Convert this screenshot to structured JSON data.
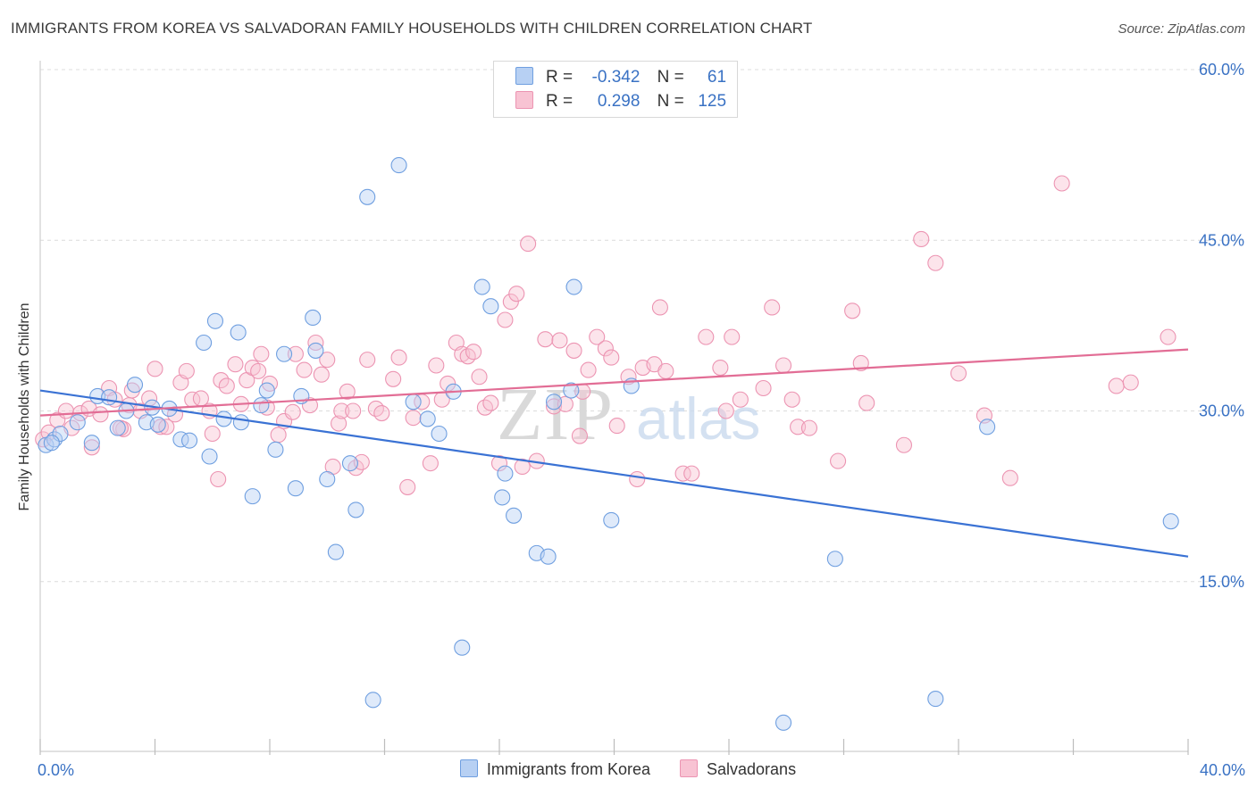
{
  "title": "IMMIGRANTS FROM KOREA VS SALVADORAN FAMILY HOUSEHOLDS WITH CHILDREN CORRELATION CHART",
  "source": "Source: ZipAtlas.com",
  "watermark": {
    "zip": "ZIP",
    "atlas": "atlas"
  },
  "legend_stats": [
    {
      "r_label": "R =",
      "r_value": "-0.342",
      "n_label": "N =",
      "n_value": "61",
      "fill": "#b7d0f3",
      "stroke": "#6f9fe0"
    },
    {
      "r_label": "R =",
      "r_value": "0.298",
      "n_label": "N =",
      "n_value": "125",
      "fill": "#f8c3d3",
      "stroke": "#ec94b2"
    }
  ],
  "legend_bottom": [
    {
      "label": "Immigrants from Korea",
      "fill": "#b7d0f3",
      "stroke": "#6f9fe0"
    },
    {
      "label": "Salvadorans",
      "fill": "#f8c3d3",
      "stroke": "#ec94b2"
    }
  ],
  "chart_data": {
    "type": "scatter",
    "xlabel": "",
    "ylabel": "Family Households with Children",
    "xlim": [
      0,
      40
    ],
    "ylim": [
      0,
      60
    ],
    "x_tick_labels": [
      "0.0%",
      "40.0%"
    ],
    "y_ticks": [
      15,
      30,
      45,
      60
    ],
    "y_tick_labels": [
      "15.0%",
      "30.0%",
      "45.0%",
      "60.0%"
    ],
    "grid": true,
    "legend_position": "top-center",
    "series": [
      {
        "name": "Immigrants from Korea",
        "color": "#6f9fe0",
        "line_color": "#3a72d4",
        "trend": {
          "x": [
            0,
            40
          ],
          "y": [
            31.8,
            17.2
          ]
        },
        "points": [
          [
            0.2,
            27.0
          ],
          [
            0.5,
            27.5
          ],
          [
            0.7,
            28.0
          ],
          [
            1.3,
            29.0
          ],
          [
            1.8,
            27.2
          ],
          [
            2.0,
            31.3
          ],
          [
            2.4,
            31.2
          ],
          [
            2.7,
            28.5
          ],
          [
            3.0,
            30.0
          ],
          [
            3.3,
            32.3
          ],
          [
            3.7,
            29.0
          ],
          [
            3.9,
            30.3
          ],
          [
            4.1,
            28.8
          ],
          [
            4.5,
            30.2
          ],
          [
            4.9,
            27.5
          ],
          [
            5.2,
            27.4
          ],
          [
            5.7,
            36.0
          ],
          [
            5.9,
            26.0
          ],
          [
            6.1,
            37.9
          ],
          [
            6.4,
            29.3
          ],
          [
            6.9,
            36.9
          ],
          [
            7.0,
            29.0
          ],
          [
            7.4,
            22.5
          ],
          [
            7.7,
            30.5
          ],
          [
            7.9,
            31.8
          ],
          [
            8.2,
            26.6
          ],
          [
            8.5,
            35.0
          ],
          [
            8.9,
            23.2
          ],
          [
            9.1,
            31.3
          ],
          [
            9.5,
            38.2
          ],
          [
            9.6,
            35.3
          ],
          [
            10.0,
            24.0
          ],
          [
            10.3,
            17.6
          ],
          [
            10.8,
            25.4
          ],
          [
            11.0,
            21.3
          ],
          [
            11.4,
            48.8
          ],
          [
            11.6,
            4.6
          ],
          [
            12.5,
            51.6
          ],
          [
            13.0,
            30.8
          ],
          [
            13.5,
            29.3
          ],
          [
            13.9,
            28.0
          ],
          [
            14.4,
            31.7
          ],
          [
            14.7,
            9.2
          ],
          [
            15.4,
            40.9
          ],
          [
            15.7,
            39.2
          ],
          [
            16.1,
            22.4
          ],
          [
            16.2,
            24.5
          ],
          [
            16.5,
            20.8
          ],
          [
            17.3,
            17.5
          ],
          [
            17.7,
            17.2
          ],
          [
            17.9,
            30.8
          ],
          [
            18.5,
            31.8
          ],
          [
            18.6,
            40.9
          ],
          [
            19.9,
            20.4
          ],
          [
            20.6,
            32.2
          ],
          [
            25.9,
            2.6
          ],
          [
            27.7,
            17.0
          ],
          [
            31.2,
            4.7
          ],
          [
            33.0,
            28.6
          ],
          [
            39.4,
            20.3
          ],
          [
            0.4,
            27.2
          ]
        ]
      },
      {
        "name": "Salvadorans",
        "color": "#ec94b2",
        "line_color": "#e26d95",
        "trend": {
          "x": [
            0,
            40
          ],
          "y": [
            29.6,
            35.4
          ]
        },
        "points": [
          [
            0.1,
            27.5
          ],
          [
            0.3,
            28.1
          ],
          [
            0.6,
            29.2
          ],
          [
            0.9,
            30.0
          ],
          [
            1.1,
            28.5
          ],
          [
            1.4,
            29.8
          ],
          [
            1.7,
            30.2
          ],
          [
            1.8,
            26.8
          ],
          [
            2.1,
            29.7
          ],
          [
            2.4,
            32.0
          ],
          [
            2.6,
            31.0
          ],
          [
            2.9,
            28.4
          ],
          [
            3.1,
            30.5
          ],
          [
            3.2,
            31.8
          ],
          [
            3.5,
            30.0
          ],
          [
            3.8,
            31.1
          ],
          [
            4.0,
            33.7
          ],
          [
            4.2,
            28.6
          ],
          [
            4.4,
            28.6
          ],
          [
            4.7,
            29.7
          ],
          [
            4.9,
            32.5
          ],
          [
            5.1,
            33.5
          ],
          [
            5.3,
            31.0
          ],
          [
            5.6,
            31.1
          ],
          [
            5.9,
            30.0
          ],
          [
            6.0,
            28.0
          ],
          [
            6.2,
            24.0
          ],
          [
            6.3,
            32.7
          ],
          [
            6.5,
            32.2
          ],
          [
            6.8,
            34.1
          ],
          [
            7.0,
            30.6
          ],
          [
            7.2,
            32.7
          ],
          [
            7.4,
            33.8
          ],
          [
            7.7,
            35.0
          ],
          [
            7.9,
            30.3
          ],
          [
            8.0,
            32.4
          ],
          [
            8.3,
            27.9
          ],
          [
            8.5,
            29.1
          ],
          [
            8.8,
            29.9
          ],
          [
            8.9,
            35.0
          ],
          [
            9.2,
            33.6
          ],
          [
            9.4,
            30.5
          ],
          [
            9.6,
            36.0
          ],
          [
            9.8,
            33.2
          ],
          [
            10.0,
            34.5
          ],
          [
            10.2,
            25.1
          ],
          [
            10.4,
            28.9
          ],
          [
            10.5,
            30.0
          ],
          [
            10.7,
            31.7
          ],
          [
            10.9,
            30.0
          ],
          [
            11.0,
            25.0
          ],
          [
            11.2,
            25.5
          ],
          [
            11.4,
            34.5
          ],
          [
            11.7,
            30.2
          ],
          [
            11.9,
            29.8
          ],
          [
            12.3,
            32.8
          ],
          [
            12.5,
            34.7
          ],
          [
            12.8,
            23.3
          ],
          [
            13.0,
            29.4
          ],
          [
            13.3,
            30.8
          ],
          [
            13.6,
            25.4
          ],
          [
            13.8,
            34.0
          ],
          [
            14.0,
            31.0
          ],
          [
            14.2,
            32.4
          ],
          [
            14.5,
            36.0
          ],
          [
            14.7,
            35.0
          ],
          [
            14.9,
            34.8
          ],
          [
            15.1,
            35.2
          ],
          [
            15.3,
            33.0
          ],
          [
            15.5,
            30.3
          ],
          [
            15.7,
            30.7
          ],
          [
            16.0,
            25.4
          ],
          [
            16.2,
            38.0
          ],
          [
            16.4,
            39.6
          ],
          [
            16.6,
            40.3
          ],
          [
            16.8,
            25.1
          ],
          [
            17.0,
            44.7
          ],
          [
            17.3,
            25.6
          ],
          [
            17.6,
            36.3
          ],
          [
            17.9,
            30.4
          ],
          [
            18.1,
            36.2
          ],
          [
            18.3,
            30.6
          ],
          [
            18.6,
            35.3
          ],
          [
            18.8,
            27.8
          ],
          [
            19.1,
            33.6
          ],
          [
            19.4,
            36.5
          ],
          [
            19.7,
            35.5
          ],
          [
            19.9,
            34.7
          ],
          [
            20.1,
            28.7
          ],
          [
            20.5,
            33.0
          ],
          [
            20.8,
            24.0
          ],
          [
            21.0,
            33.8
          ],
          [
            21.4,
            34.1
          ],
          [
            21.6,
            39.1
          ],
          [
            21.8,
            33.5
          ],
          [
            22.4,
            24.5
          ],
          [
            22.7,
            24.5
          ],
          [
            23.2,
            36.5
          ],
          [
            23.7,
            33.8
          ],
          [
            23.9,
            30.0
          ],
          [
            24.1,
            36.5
          ],
          [
            24.4,
            31.0
          ],
          [
            25.2,
            32.0
          ],
          [
            25.5,
            39.1
          ],
          [
            25.9,
            34.0
          ],
          [
            26.2,
            31.0
          ],
          [
            26.4,
            28.6
          ],
          [
            26.8,
            28.5
          ],
          [
            27.8,
            25.6
          ],
          [
            28.3,
            38.8
          ],
          [
            28.6,
            34.2
          ],
          [
            28.8,
            30.7
          ],
          [
            30.1,
            27.0
          ],
          [
            30.7,
            45.1
          ],
          [
            31.2,
            43.0
          ],
          [
            32.0,
            33.3
          ],
          [
            32.9,
            29.6
          ],
          [
            33.8,
            24.1
          ],
          [
            35.6,
            50.0
          ],
          [
            37.5,
            32.2
          ],
          [
            38.0,
            32.5
          ],
          [
            39.3,
            36.5
          ],
          [
            2.8,
            28.5
          ],
          [
            7.6,
            33.5
          ],
          [
            18.9,
            31.7
          ]
        ]
      }
    ]
  }
}
